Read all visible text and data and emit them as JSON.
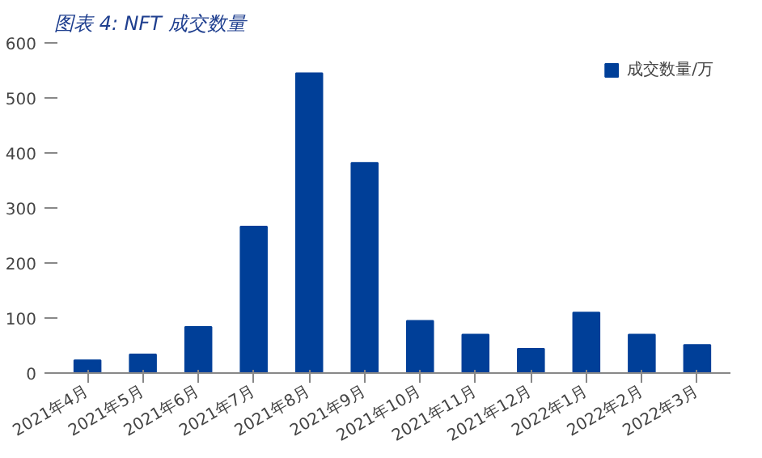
{
  "chart_data": {
    "type": "bar",
    "title": "图表 4:  NFT 成交数量",
    "categories": [
      "2021年4月",
      "2021年5月",
      "2021年6月",
      "2021年7月",
      "2021年8月",
      "2021年9月",
      "2021年10月",
      "2021年11月",
      "2021年12月",
      "2022年1月",
      "2022年2月",
      "2022年3月"
    ],
    "series": [
      {
        "name": "成交数量/万",
        "color": "#003f98",
        "values": [
          23,
          34,
          84,
          266,
          545,
          382,
          95,
          70,
          44,
          110,
          70,
          51
        ]
      }
    ],
    "ylim": [
      0,
      600
    ],
    "yticks": [
      0,
      100,
      200,
      300,
      400,
      500,
      600
    ],
    "grid": false,
    "legend": "top right"
  }
}
